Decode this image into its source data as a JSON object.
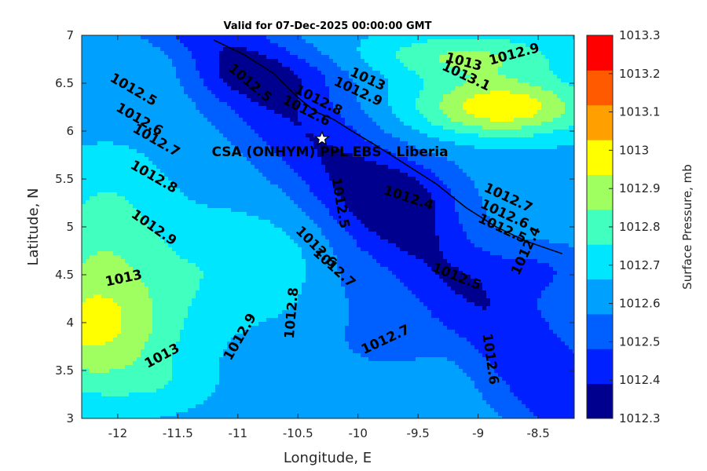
{
  "chart_data": {
    "type": "contourf",
    "title": "Valid for 07-Dec-2025 00:00:00 GMT",
    "xlabel": "Longitude, E",
    "ylabel": "Latitude, N",
    "xlim": [
      -12.3,
      -8.2
    ],
    "ylim": [
      3,
      7
    ],
    "xticks": [
      "-12",
      "-11.5",
      "-11",
      "-10.5",
      "-10",
      "-9.5",
      "-9",
      "-8.5"
    ],
    "yticks": [
      "3",
      "3.5",
      "4",
      "4.5",
      "5",
      "5.5",
      "6",
      "6.5",
      "7"
    ],
    "colorbar": {
      "label": "Surface Pressure, mb",
      "ticks": [
        "1012.3",
        "1012.4",
        "1012.5",
        "1012.6",
        "1012.7",
        "1012.8",
        "1012.9",
        "1013",
        "1013.1",
        "1013.2",
        "1013.3"
      ],
      "levels": [
        1012.3,
        1012.4,
        1012.5,
        1012.6,
        1012.7,
        1012.8,
        1012.9,
        1013.0,
        1013.1,
        1013.2,
        1013.3
      ],
      "colors": [
        "#00008f",
        "#0020ff",
        "#0060ff",
        "#00a0ff",
        "#00e6ff",
        "#40ffbf",
        "#9fff60",
        "#ffff00",
        "#ffa000",
        "#ff5a00",
        "#ff0000"
      ]
    },
    "station": {
      "name": "CSA (ONHYM) PPL EBS  - Liberia",
      "lon": -10.3,
      "lat": 5.92
    },
    "contour_labels": [
      {
        "text": "1012.9",
        "lon": -8.7,
        "lat": 6.8,
        "angle": -15
      },
      {
        "text": "1013",
        "lon": -9.12,
        "lat": 6.72,
        "angle": 15
      },
      {
        "text": "1013.1",
        "lon": -9.1,
        "lat": 6.57,
        "angle": 25
      },
      {
        "text": "1013",
        "lon": -9.92,
        "lat": 6.54,
        "angle": 25
      },
      {
        "text": "1012.9",
        "lon": -10.0,
        "lat": 6.41,
        "angle": 25
      },
      {
        "text": "1012.8",
        "lon": -10.33,
        "lat": 6.32,
        "angle": 27
      },
      {
        "text": "1012.6",
        "lon": -10.43,
        "lat": 6.21,
        "angle": 27
      },
      {
        "text": "1012.5",
        "lon": -10.9,
        "lat": 6.5,
        "angle": 40
      },
      {
        "text": "1012.5",
        "lon": -11.87,
        "lat": 6.43,
        "angle": 30
      },
      {
        "text": "1012.6",
        "lon": -11.82,
        "lat": 6.12,
        "angle": 30
      },
      {
        "text": "1012.7",
        "lon": -11.68,
        "lat": 5.9,
        "angle": 30
      },
      {
        "text": "1012.8",
        "lon": -11.7,
        "lat": 5.52,
        "angle": 30
      },
      {
        "text": "1012.9",
        "lon": -11.7,
        "lat": 4.99,
        "angle": 35
      },
      {
        "text": "1013",
        "lon": -11.95,
        "lat": 4.46,
        "angle": -12
      },
      {
        "text": "1013",
        "lon": -11.63,
        "lat": 3.65,
        "angle": -28
      },
      {
        "text": "1012.9",
        "lon": -10.98,
        "lat": 3.85,
        "angle": -60
      },
      {
        "text": "1012.8",
        "lon": -10.55,
        "lat": 4.1,
        "angle": -85
      },
      {
        "text": "1012.6",
        "lon": -10.35,
        "lat": 4.79,
        "angle": 45
      },
      {
        "text": "1012.7",
        "lon": -10.2,
        "lat": 4.57,
        "angle": 42
      },
      {
        "text": "1012.5",
        "lon": -10.15,
        "lat": 5.25,
        "angle": 80
      },
      {
        "text": "1012.4",
        "lon": -9.58,
        "lat": 5.3,
        "angle": 18
      },
      {
        "text": "1012.5",
        "lon": -9.18,
        "lat": 4.48,
        "angle": 22
      },
      {
        "text": "1012.7",
        "lon": -9.77,
        "lat": 3.82,
        "angle": -25
      },
      {
        "text": "1012.6",
        "lon": -8.9,
        "lat": 3.62,
        "angle": 82
      },
      {
        "text": "1012.7",
        "lon": -8.75,
        "lat": 5.3,
        "angle": 25
      },
      {
        "text": "1012.6",
        "lon": -8.78,
        "lat": 5.13,
        "angle": 25
      },
      {
        "text": "1012.5",
        "lon": -8.8,
        "lat": 4.98,
        "angle": 25
      },
      {
        "text": "1012.4",
        "lon": -8.6,
        "lat": 4.75,
        "angle": -65
      }
    ]
  }
}
